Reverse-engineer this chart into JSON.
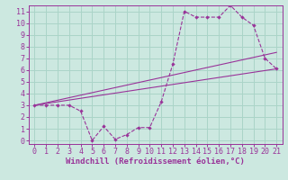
{
  "xlabel": "Windchill (Refroidissement éolien,°C)",
  "bg_color": "#cce8e0",
  "grid_color": "#aad4c8",
  "line_color": "#993399",
  "spine_color": "#993399",
  "xlim": [
    -0.5,
    21.5
  ],
  "ylim": [
    -0.3,
    11.5
  ],
  "xticks": [
    0,
    1,
    2,
    3,
    4,
    5,
    6,
    7,
    8,
    9,
    10,
    11,
    12,
    13,
    14,
    15,
    16,
    17,
    18,
    19,
    20,
    21
  ],
  "yticks": [
    0,
    1,
    2,
    3,
    4,
    5,
    6,
    7,
    8,
    9,
    10,
    11
  ],
  "zigzag_x": [
    0,
    1,
    2,
    3,
    4,
    5,
    6,
    7,
    8,
    9,
    10,
    11,
    12,
    13,
    14,
    15,
    16,
    17,
    18,
    19,
    20,
    21
  ],
  "zigzag_y": [
    3,
    3,
    3,
    3,
    2.5,
    0,
    1.2,
    0.1,
    0.5,
    1.1,
    1.1,
    3.3,
    6.5,
    11.0,
    10.5,
    10.5,
    10.5,
    11.5,
    10.5,
    9.8,
    7.0,
    6.1
  ],
  "line2_x": [
    0,
    21
  ],
  "line2_y": [
    3.0,
    6.1
  ],
  "line3_x": [
    0,
    21
  ],
  "line3_y": [
    3.0,
    7.5
  ],
  "tick_fontsize": 6.0,
  "label_fontsize": 6.5
}
